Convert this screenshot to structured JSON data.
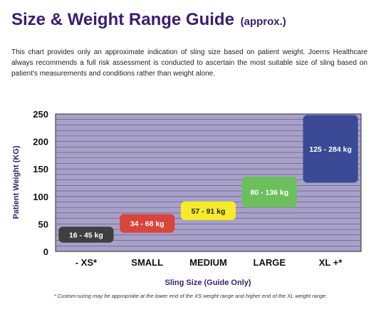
{
  "page": {
    "title": "Size & Weight Range Guide",
    "title_suffix": "(approx.)",
    "intro": "This chart provides only an approximate indication of sling size based on patient weight. Joerns Healthcare always recommends a full risk assessment is conducted to ascertain the most suitable size of sling based on patient's measurements and conditions rather than weight alone.",
    "footnote": "* Custom-sizing may be appropriate at the lower end of the XS weight range and higher end of the XL weight range."
  },
  "chart_data": {
    "type": "bar",
    "title": "",
    "xlabel": "Sling Size (Guide Only)",
    "ylabel": "Patient Weight (KG)",
    "ylim": [
      0,
      250
    ],
    "yticks": [
      0,
      50,
      100,
      150,
      200,
      250
    ],
    "grid": true,
    "categories": [
      "- XS*",
      "SMALL",
      "MEDIUM",
      "LARGE",
      "XL +*"
    ],
    "ranges": [
      {
        "label": "16 - 45 kg",
        "low": 16,
        "high": 45,
        "color": "#3f3f3f",
        "text_color": "#ffffff"
      },
      {
        "label": "34 - 68 kg",
        "low": 34,
        "high": 68,
        "color": "#d9453b",
        "text_color": "#ffffff"
      },
      {
        "label": "57 - 91 kg",
        "low": 57,
        "high": 91,
        "color": "#f6ea2b",
        "text_color": "#222222"
      },
      {
        "label": "80 - 136 kg",
        "low": 80,
        "high": 136,
        "color": "#6cbf5d",
        "text_color": "#ffffff"
      },
      {
        "label": "125 - 284 kg",
        "low": 125,
        "high": 284,
        "color": "#3a4a97",
        "text_color": "#ffffff"
      }
    ],
    "plot_background": "#a7a1c9",
    "axis_label_color": "#3a1d6e"
  }
}
